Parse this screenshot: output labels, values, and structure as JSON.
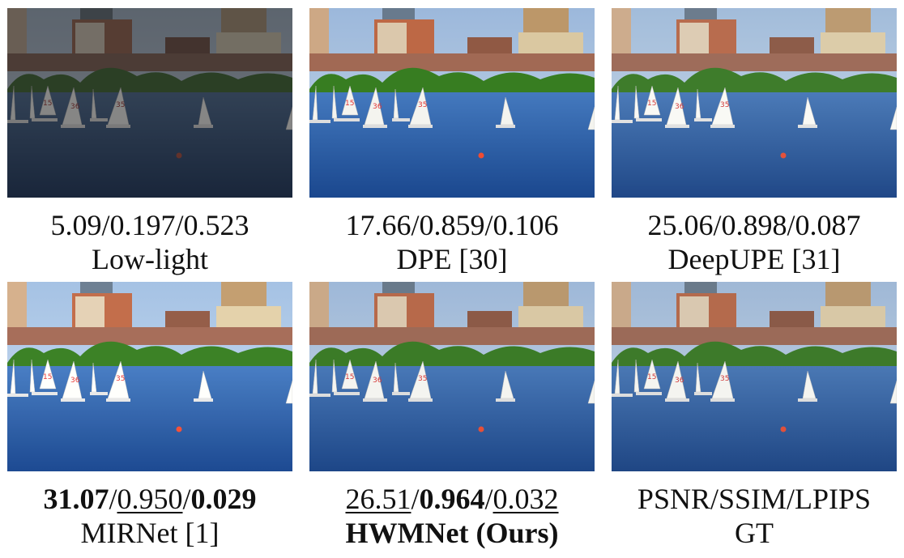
{
  "panels": [
    {
      "metrics": [
        {
          "text": "5.09/0.197/0.523"
        }
      ],
      "label": "Low-light"
    },
    {
      "metrics": [
        {
          "text": "17.66/0.859/0.106"
        }
      ],
      "label": "DPE [30]"
    },
    {
      "metrics": [
        {
          "text": "25.06/0.898/0.087"
        }
      ],
      "label": "DeepUPE [31]"
    },
    {
      "metrics": [
        {
          "text": "31.07",
          "bold": true
        },
        {
          "text": "/"
        },
        {
          "text": "0.950",
          "underline": true
        },
        {
          "text": "/"
        },
        {
          "text": "0.029",
          "bold": true
        }
      ],
      "label": "MIRNet [1]"
    },
    {
      "metrics": [
        {
          "text": "26.51",
          "underline": true
        },
        {
          "text": "/"
        },
        {
          "text": "0.964",
          "bold": true
        },
        {
          "text": "/"
        },
        {
          "text": "0.032",
          "underline": true
        }
      ],
      "label": "HWMNet (Ours)",
      "label_bold": true
    },
    {
      "metrics": [
        {
          "text": "PSNR/SSIM/LPIPS"
        }
      ],
      "label": "GT"
    }
  ]
}
